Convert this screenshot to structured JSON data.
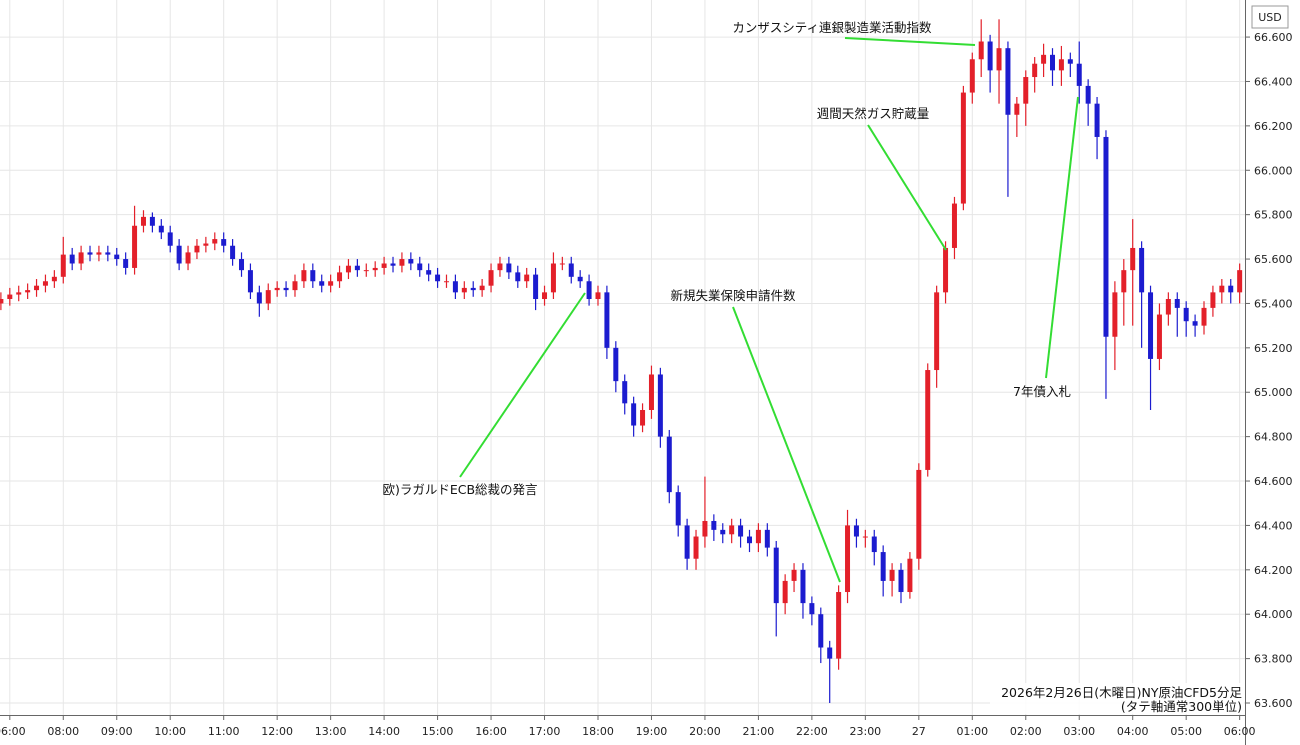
{
  "chart_data": {
    "type": "candlestick",
    "unit": "USD",
    "annotations": [
      "欧)ラガルドECB総裁の発言",
      "新規失業保険申請件数",
      "週間天然ガス貯蔵量",
      "カンザスシティ連銀製造業活動指数",
      "7年債入札"
    ],
    "footnote": [
      "2026年2月26日(木曜日)NY原油CFD5分足",
      "(タテ軸通常300単位)"
    ],
    "up_color": "#e3202a",
    "down_color": "#1c1ccf",
    "grid": true,
    "xlim": [
      409,
      1806
    ],
    "xticks": [
      {
        "value": 420,
        "label": "06:00"
      },
      {
        "value": 480,
        "label": "08:00"
      },
      {
        "value": 540,
        "label": "09:00"
      },
      {
        "value": 600,
        "label": "10:00"
      },
      {
        "value": 660,
        "label": "11:00"
      },
      {
        "value": 720,
        "label": "12:00"
      },
      {
        "value": 780,
        "label": "13:00"
      },
      {
        "value": 840,
        "label": "14:00"
      },
      {
        "value": 900,
        "label": "15:00"
      },
      {
        "value": 960,
        "label": "16:00"
      },
      {
        "value": 1020,
        "label": "17:00"
      },
      {
        "value": 1080,
        "label": "18:00"
      },
      {
        "value": 1140,
        "label": "19:00"
      },
      {
        "value": 1200,
        "label": "20:00"
      },
      {
        "value": 1260,
        "label": "21:00"
      },
      {
        "value": 1320,
        "label": "22:00"
      },
      {
        "value": 1380,
        "label": "23:00"
      },
      {
        "value": 1440,
        "label": "27"
      },
      {
        "value": 1500,
        "label": "01:00"
      },
      {
        "value": 1560,
        "label": "02:00"
      },
      {
        "value": 1620,
        "label": "03:00"
      },
      {
        "value": 1680,
        "label": "04:00"
      },
      {
        "value": 1740,
        "label": "05:00"
      },
      {
        "value": 1800,
        "label": "06:00"
      }
    ],
    "ylim": [
      63.546,
      66.767
    ],
    "yticks": [
      {
        "value": 63.6,
        "label": "63.600"
      },
      {
        "value": 63.8,
        "label": "63.800"
      },
      {
        "value": 64.0,
        "label": "64.000"
      },
      {
        "value": 64.2,
        "label": "64.200"
      },
      {
        "value": 64.4,
        "label": "64.400"
      },
      {
        "value": 64.6,
        "label": "64.600"
      },
      {
        "value": 64.8,
        "label": "64.800"
      },
      {
        "value": 65.0,
        "label": "65.000"
      },
      {
        "value": 65.2,
        "label": "65.200"
      },
      {
        "value": 65.4,
        "label": "65.400"
      },
      {
        "value": 65.6,
        "label": "65.600"
      },
      {
        "value": 65.8,
        "label": "65.800"
      },
      {
        "value": 66.0,
        "label": "66.000"
      },
      {
        "value": 66.2,
        "label": "66.200"
      },
      {
        "value": 66.4,
        "label": "66.400"
      },
      {
        "value": 66.6,
        "label": "66.600"
      }
    ],
    "x": [
      410,
      420,
      430,
      440,
      450,
      460,
      470,
      480,
      490,
      500,
      510,
      520,
      530,
      540,
      550,
      560,
      570,
      580,
      590,
      600,
      610,
      620,
      630,
      640,
      650,
      660,
      670,
      680,
      690,
      700,
      710,
      720,
      730,
      740,
      750,
      760,
      770,
      780,
      790,
      800,
      810,
      820,
      830,
      840,
      850,
      860,
      870,
      880,
      890,
      900,
      910,
      920,
      930,
      940,
      950,
      960,
      970,
      980,
      990,
      1000,
      1010,
      1020,
      1030,
      1040,
      1050,
      1060,
      1070,
      1080,
      1090,
      1100,
      1110,
      1120,
      1130,
      1140,
      1150,
      1160,
      1170,
      1180,
      1190,
      1200,
      1210,
      1220,
      1230,
      1240,
      1250,
      1260,
      1270,
      1280,
      1290,
      1300,
      1310,
      1320,
      1330,
      1340,
      1350,
      1360,
      1370,
      1380,
      1390,
      1400,
      1410,
      1420,
      1430,
      1440,
      1450,
      1460,
      1470,
      1480,
      1490,
      1500,
      1510,
      1520,
      1530,
      1540,
      1550,
      1560,
      1570,
      1580,
      1590,
      1600,
      1610,
      1620,
      1630,
      1640,
      1650,
      1660,
      1670,
      1680,
      1690,
      1700,
      1710,
      1720,
      1730,
      1740,
      1750,
      1760,
      1770,
      1780,
      1790,
      1800
    ],
    "open": [
      65.4,
      65.42,
      65.44,
      65.45,
      65.46,
      65.48,
      65.5,
      65.52,
      65.62,
      65.58,
      65.63,
      65.62,
      65.63,
      65.62,
      65.6,
      65.56,
      65.75,
      65.79,
      65.75,
      65.72,
      65.66,
      65.58,
      65.63,
      65.66,
      65.67,
      65.69,
      65.66,
      65.6,
      65.55,
      65.45,
      65.4,
      65.46,
      65.47,
      65.46,
      65.5,
      65.55,
      65.5,
      65.48,
      65.5,
      65.54,
      65.57,
      65.55,
      65.55,
      65.56,
      65.58,
      65.57,
      65.6,
      65.58,
      65.55,
      65.53,
      65.5,
      65.5,
      65.45,
      65.47,
      65.46,
      65.48,
      65.55,
      65.58,
      65.54,
      65.5,
      65.53,
      65.42,
      65.45,
      65.58,
      65.58,
      65.52,
      65.5,
      65.42,
      65.45,
      65.2,
      65.05,
      64.95,
      64.85,
      64.92,
      65.08,
      64.8,
      64.55,
      64.4,
      64.25,
      64.35,
      64.42,
      64.38,
      64.36,
      64.4,
      64.35,
      64.32,
      64.38,
      64.3,
      64.05,
      64.15,
      64.2,
      64.05,
      64.0,
      63.85,
      63.8,
      64.1,
      64.4,
      64.35,
      64.35,
      64.28,
      64.15,
      64.2,
      64.1,
      64.25,
      64.65,
      65.1,
      65.45,
      65.65,
      65.85,
      66.35,
      66.5,
      66.58,
      66.45,
      66.55,
      66.25,
      66.3,
      66.42,
      66.48,
      66.52,
      66.45,
      66.5,
      66.48,
      66.38,
      66.3,
      66.15,
      65.25,
      65.45,
      65.55,
      65.65,
      65.45,
      65.15,
      65.35,
      65.42,
      65.38,
      65.32,
      65.3,
      65.38,
      65.45,
      65.48,
      65.45
    ],
    "high": [
      65.45,
      65.47,
      65.48,
      65.49,
      65.51,
      65.53,
      65.55,
      65.7,
      65.65,
      65.66,
      65.66,
      65.66,
      65.66,
      65.65,
      65.63,
      65.84,
      65.82,
      65.81,
      65.78,
      65.75,
      65.69,
      65.66,
      65.69,
      65.7,
      65.72,
      65.72,
      65.69,
      65.63,
      65.58,
      65.48,
      65.49,
      65.5,
      65.5,
      65.53,
      65.58,
      65.58,
      65.53,
      65.53,
      65.57,
      65.6,
      65.6,
      65.58,
      65.59,
      65.61,
      65.61,
      65.63,
      65.63,
      65.61,
      65.58,
      65.56,
      65.53,
      65.53,
      65.5,
      65.5,
      65.51,
      65.58,
      65.61,
      65.61,
      65.57,
      65.56,
      65.56,
      65.48,
      65.63,
      65.61,
      65.61,
      65.55,
      65.53,
      65.48,
      65.48,
      65.23,
      65.08,
      64.98,
      64.95,
      65.12,
      65.11,
      64.83,
      64.58,
      64.43,
      64.38,
      64.62,
      64.45,
      64.41,
      64.43,
      64.43,
      64.38,
      64.41,
      64.41,
      64.33,
      64.18,
      64.23,
      64.23,
      64.08,
      64.03,
      63.88,
      64.13,
      64.47,
      64.43,
      64.38,
      64.38,
      64.31,
      64.23,
      64.23,
      64.28,
      64.68,
      65.13,
      65.48,
      65.68,
      65.88,
      66.38,
      66.53,
      66.68,
      66.61,
      66.68,
      66.58,
      66.33,
      66.45,
      66.51,
      66.57,
      66.55,
      66.56,
      66.53,
      66.58,
      66.41,
      66.33,
      66.18,
      65.5,
      65.6,
      65.78,
      65.68,
      65.48,
      65.4,
      65.45,
      65.45,
      65.41,
      65.35,
      65.41,
      65.48,
      65.51,
      65.51,
      65.58
    ],
    "low": [
      65.37,
      65.39,
      65.41,
      65.42,
      65.43,
      65.45,
      65.47,
      65.49,
      65.55,
      65.55,
      65.59,
      65.59,
      65.59,
      65.57,
      65.53,
      65.53,
      65.72,
      65.72,
      65.69,
      65.63,
      65.55,
      65.55,
      65.6,
      65.63,
      65.64,
      65.63,
      65.57,
      65.52,
      65.42,
      65.34,
      65.37,
      65.43,
      65.43,
      65.43,
      65.47,
      65.47,
      65.45,
      65.45,
      65.47,
      65.51,
      65.52,
      65.52,
      65.52,
      65.53,
      65.54,
      65.54,
      65.55,
      65.52,
      65.5,
      65.47,
      65.47,
      65.42,
      65.42,
      65.43,
      65.43,
      65.45,
      65.52,
      65.51,
      65.47,
      65.47,
      65.37,
      65.39,
      65.42,
      65.55,
      65.49,
      65.47,
      65.39,
      65.39,
      65.15,
      65.0,
      64.9,
      64.8,
      64.82,
      64.88,
      64.75,
      64.5,
      64.35,
      64.2,
      64.2,
      64.3,
      64.33,
      64.32,
      64.32,
      64.3,
      64.28,
      64.28,
      64.26,
      63.9,
      64.0,
      64.1,
      63.98,
      63.95,
      63.78,
      63.6,
      63.75,
      64.05,
      64.3,
      64.3,
      64.22,
      64.08,
      64.08,
      64.05,
      64.07,
      64.2,
      64.62,
      65.02,
      65.4,
      65.6,
      65.82,
      66.3,
      66.42,
      66.35,
      66.3,
      65.88,
      66.15,
      66.2,
      66.35,
      66.42,
      66.38,
      66.38,
      66.42,
      66.3,
      66.2,
      66.05,
      64.97,
      65.1,
      65.3,
      65.3,
      65.2,
      64.92,
      65.1,
      65.3,
      65.25,
      65.25,
      65.25,
      65.26,
      65.34,
      65.4,
      65.4,
      65.4
    ],
    "close": [
      65.42,
      65.44,
      65.45,
      65.46,
      65.48,
      65.5,
      65.52,
      65.62,
      65.58,
      65.63,
      65.62,
      65.63,
      65.62,
      65.6,
      65.56,
      65.75,
      65.79,
      65.75,
      65.72,
      65.66,
      65.58,
      65.63,
      65.66,
      65.67,
      65.69,
      65.66,
      65.6,
      65.55,
      65.45,
      65.4,
      65.46,
      65.47,
      65.46,
      65.5,
      65.55,
      65.5,
      65.48,
      65.5,
      65.54,
      65.57,
      65.55,
      65.55,
      65.56,
      65.58,
      65.57,
      65.6,
      65.58,
      65.55,
      65.53,
      65.5,
      65.5,
      65.45,
      65.47,
      65.46,
      65.48,
      65.55,
      65.58,
      65.54,
      65.5,
      65.53,
      65.42,
      65.45,
      65.58,
      65.58,
      65.52,
      65.5,
      65.42,
      65.45,
      65.2,
      65.05,
      64.95,
      64.85,
      64.92,
      65.08,
      64.8,
      64.55,
      64.4,
      64.25,
      64.35,
      64.42,
      64.38,
      64.36,
      64.4,
      64.35,
      64.32,
      64.38,
      64.3,
      64.05,
      64.15,
      64.2,
      64.05,
      64.0,
      63.85,
      63.8,
      64.1,
      64.4,
      64.35,
      64.35,
      64.28,
      64.15,
      64.2,
      64.1,
      64.25,
      64.65,
      65.1,
      65.45,
      65.65,
      65.85,
      66.35,
      66.5,
      66.58,
      66.45,
      66.55,
      66.25,
      66.3,
      66.42,
      66.48,
      66.52,
      66.45,
      66.5,
      66.48,
      66.38,
      66.3,
      66.15,
      65.25,
      65.45,
      65.55,
      65.65,
      65.45,
      65.15,
      65.35,
      65.42,
      65.38,
      65.32,
      65.3,
      65.38,
      65.45,
      65.48,
      65.45,
      65.55
    ]
  }
}
